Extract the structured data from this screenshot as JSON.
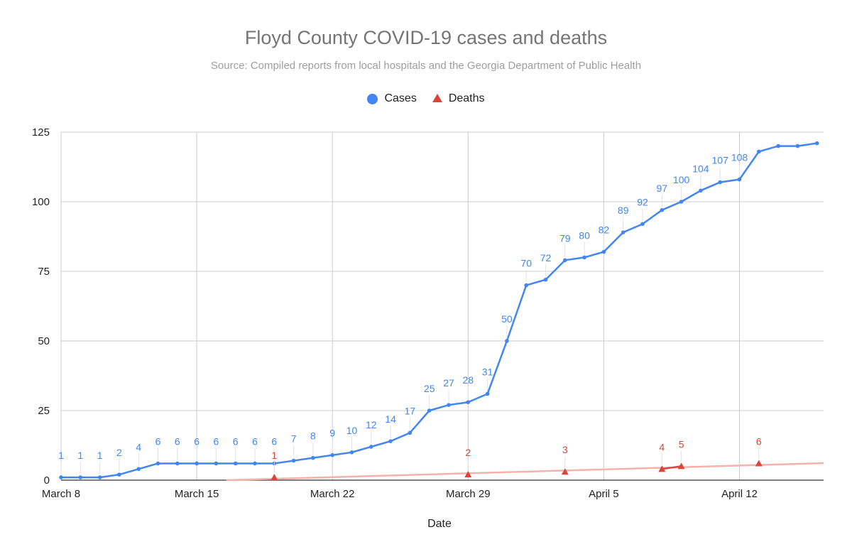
{
  "chart_data": {
    "type": "line",
    "title": "Floyd County COVID-19 cases and deaths",
    "subtitle": "Source: Compiled reports from local hospitals and the Georgia Department of Public Health",
    "xlabel": "Date",
    "ylabel": "",
    "ylim": [
      0,
      125
    ],
    "yticks": [
      0,
      25,
      50,
      75,
      100,
      125
    ],
    "xlim": [
      "2020-03-08",
      "2020-04-15"
    ],
    "xticks": [
      {
        "date": "2020-03-08",
        "label": "March 8"
      },
      {
        "date": "2020-03-15",
        "label": "March 15"
      },
      {
        "date": "2020-03-22",
        "label": "March 22"
      },
      {
        "date": "2020-03-29",
        "label": "March 29"
      },
      {
        "date": "2020-04-05",
        "label": "April 5"
      },
      {
        "date": "2020-04-12",
        "label": "April 12"
      }
    ],
    "grid": true,
    "legend_position": "top",
    "series": [
      {
        "name": "Cases",
        "marker": "circle",
        "color": "#4285f4",
        "points": [
          {
            "date": "2020-03-08",
            "value": 1,
            "label": "1"
          },
          {
            "date": "2020-03-09",
            "value": 1,
            "label": "1"
          },
          {
            "date": "2020-03-10",
            "value": 1,
            "label": "1"
          },
          {
            "date": "2020-03-11",
            "value": 2,
            "label": "2"
          },
          {
            "date": "2020-03-12",
            "value": 4,
            "label": "4"
          },
          {
            "date": "2020-03-13",
            "value": 6,
            "label": "6"
          },
          {
            "date": "2020-03-14",
            "value": 6,
            "label": "6"
          },
          {
            "date": "2020-03-15",
            "value": 6,
            "label": "6"
          },
          {
            "date": "2020-03-16",
            "value": 6,
            "label": "6"
          },
          {
            "date": "2020-03-17",
            "value": 6,
            "label": "6"
          },
          {
            "date": "2020-03-18",
            "value": 6,
            "label": "6"
          },
          {
            "date": "2020-03-19",
            "value": 6,
            "label": "6"
          },
          {
            "date": "2020-03-20",
            "value": 7,
            "label": "7"
          },
          {
            "date": "2020-03-21",
            "value": 8,
            "label": "8"
          },
          {
            "date": "2020-03-22",
            "value": 9,
            "label": "9"
          },
          {
            "date": "2020-03-23",
            "value": 10,
            "label": "10"
          },
          {
            "date": "2020-03-24",
            "value": 12,
            "label": "12"
          },
          {
            "date": "2020-03-25",
            "value": 14,
            "label": "14"
          },
          {
            "date": "2020-03-26",
            "value": 17,
            "label": "17"
          },
          {
            "date": "2020-03-27",
            "value": 25,
            "label": "25"
          },
          {
            "date": "2020-03-28",
            "value": 27,
            "label": "27"
          },
          {
            "date": "2020-03-29",
            "value": 28,
            "label": "28"
          },
          {
            "date": "2020-03-30",
            "value": 31,
            "label": "31"
          },
          {
            "date": "2020-03-31",
            "value": 50,
            "label": "50"
          },
          {
            "date": "2020-04-01",
            "value": 70,
            "label": "70"
          },
          {
            "date": "2020-04-02",
            "value": 72,
            "label": "72"
          },
          {
            "date": "2020-04-03",
            "value": 79,
            "label": "79"
          },
          {
            "date": "2020-04-04",
            "value": 80,
            "label": "80"
          },
          {
            "date": "2020-04-05",
            "value": 82,
            "label": "82"
          },
          {
            "date": "2020-04-06",
            "value": 89,
            "label": "89"
          },
          {
            "date": "2020-04-07",
            "value": 92,
            "label": "92"
          },
          {
            "date": "2020-04-08",
            "value": 97,
            "label": "97"
          },
          {
            "date": "2020-04-09",
            "value": 100,
            "label": "100"
          },
          {
            "date": "2020-04-10",
            "value": 104,
            "label": "104"
          },
          {
            "date": "2020-04-11",
            "value": 107,
            "label": "107"
          },
          {
            "date": "2020-04-12",
            "value": 108,
            "label": "108"
          },
          {
            "date": "2020-04-13",
            "value": 118
          },
          {
            "date": "2020-04-14",
            "value": 120
          },
          {
            "date": "2020-04-15",
            "value": 120
          },
          {
            "date": "2020-04-16",
            "value": 121
          }
        ]
      },
      {
        "name": "Deaths",
        "marker": "triangle",
        "color": "#db4437",
        "trendline_color": "#f4b2ab",
        "points": [
          {
            "date": "2020-03-19",
            "value": 1,
            "label": "1"
          },
          {
            "date": "2020-03-29",
            "value": 2,
            "label": "2"
          },
          {
            "date": "2020-04-03",
            "value": 3,
            "label": "3"
          },
          {
            "date": "2020-04-08",
            "value": 4,
            "label": "4"
          },
          {
            "date": "2020-04-09",
            "value": 5,
            "label": "5"
          },
          {
            "date": "2020-04-13",
            "value": 6,
            "label": "6"
          }
        ]
      }
    ]
  }
}
